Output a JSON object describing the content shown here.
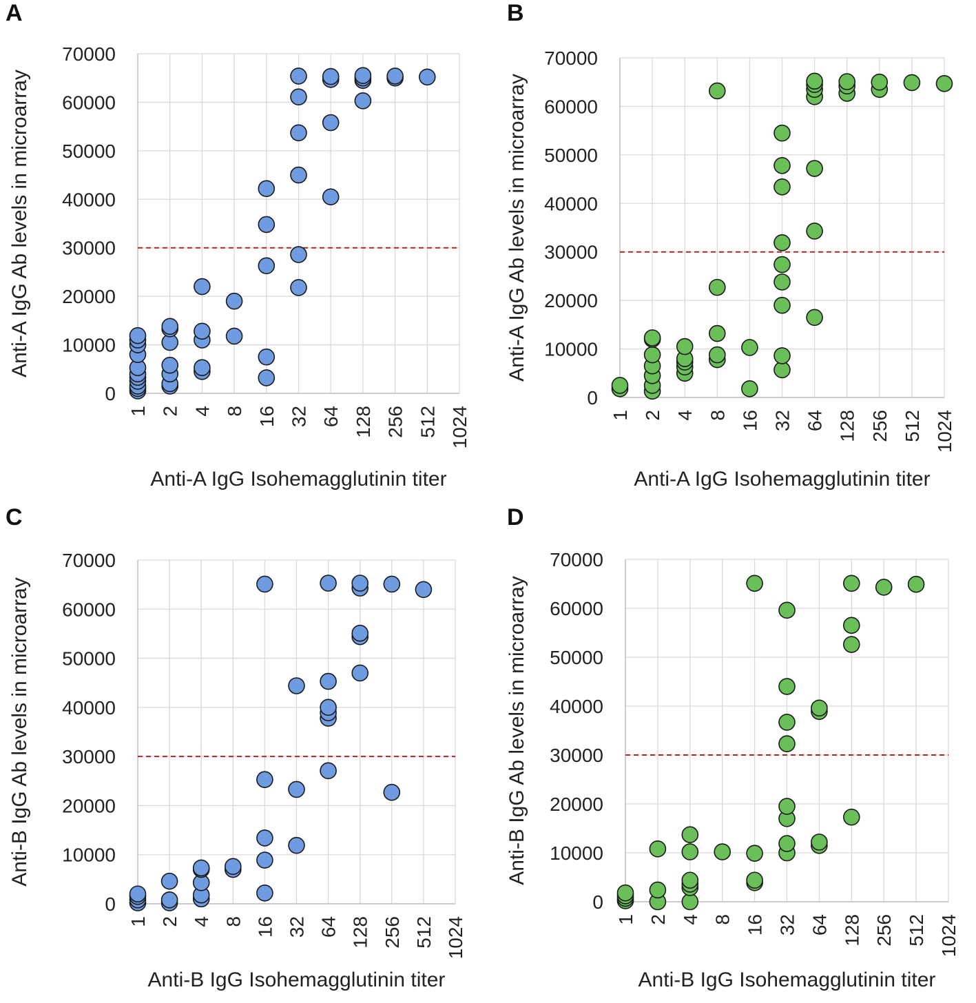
{
  "chart_data": [
    {
      "panel": "A",
      "type": "scatter",
      "xlabel": "Anti-A IgG Isohemagglutinin  titer",
      "ylabel": "Anti-A IgG Ab levels in microarray",
      "categories": [
        "1",
        "2",
        "4",
        "8",
        "16",
        "32",
        "64",
        "128",
        "256",
        "512",
        "1024"
      ],
      "yticks": [
        "0",
        "10000",
        "20000",
        "30000",
        "40000",
        "50000",
        "60000",
        "70000"
      ],
      "ylim": [
        0,
        70000
      ],
      "reference_line": 30000,
      "color": "#6f9be0",
      "points": [
        {
          "x": "1",
          "y": 500
        },
        {
          "x": "1",
          "y": 1000
        },
        {
          "x": "1",
          "y": 1500
        },
        {
          "x": "1",
          "y": 2500
        },
        {
          "x": "1",
          "y": 3300
        },
        {
          "x": "1",
          "y": 4000
        },
        {
          "x": "1",
          "y": 5300
        },
        {
          "x": "1",
          "y": 8000
        },
        {
          "x": "1",
          "y": 10000
        },
        {
          "x": "1",
          "y": 11000
        },
        {
          "x": "1",
          "y": 11900
        },
        {
          "x": "2",
          "y": 1500
        },
        {
          "x": "2",
          "y": 2000
        },
        {
          "x": "2",
          "y": 4000
        },
        {
          "x": "2",
          "y": 5800
        },
        {
          "x": "2",
          "y": 10500
        },
        {
          "x": "2",
          "y": 13300
        },
        {
          "x": "2",
          "y": 13800
        },
        {
          "x": "4",
          "y": 4500
        },
        {
          "x": "4",
          "y": 5300
        },
        {
          "x": "4",
          "y": 11000
        },
        {
          "x": "4",
          "y": 12800
        },
        {
          "x": "4",
          "y": 22000
        },
        {
          "x": "8",
          "y": 11800
        },
        {
          "x": "8",
          "y": 19000
        },
        {
          "x": "16",
          "y": 3200
        },
        {
          "x": "16",
          "y": 7500
        },
        {
          "x": "16",
          "y": 26300
        },
        {
          "x": "16",
          "y": 34800
        },
        {
          "x": "16",
          "y": 42200
        },
        {
          "x": "32",
          "y": 21800
        },
        {
          "x": "32",
          "y": 28600
        },
        {
          "x": "32",
          "y": 45000
        },
        {
          "x": "32",
          "y": 53700
        },
        {
          "x": "32",
          "y": 61100
        },
        {
          "x": "32",
          "y": 65400
        },
        {
          "x": "64",
          "y": 40500
        },
        {
          "x": "64",
          "y": 55800
        },
        {
          "x": "64",
          "y": 64700
        },
        {
          "x": "64",
          "y": 65300
        },
        {
          "x": "128",
          "y": 60300
        },
        {
          "x": "128",
          "y": 64500
        },
        {
          "x": "128",
          "y": 65000
        },
        {
          "x": "128",
          "y": 65500
        },
        {
          "x": "256",
          "y": 65000
        },
        {
          "x": "256",
          "y": 65400
        },
        {
          "x": "512",
          "y": 65200
        }
      ]
    },
    {
      "panel": "B",
      "type": "scatter",
      "xlabel": "Anti-A IgG Isohemagglutinin  titer",
      "ylabel": "Anti-A IgG  Ab levels in microarray",
      "categories": [
        "1",
        "2",
        "4",
        "8",
        "16",
        "32",
        "64",
        "128",
        "256",
        "512",
        "1024"
      ],
      "yticks": [
        "0",
        "10000",
        "20000",
        "30000",
        "40000",
        "50000",
        "60000",
        "70000"
      ],
      "ylim": [
        0,
        70000
      ],
      "reference_line": 30000,
      "color": "#6bbf59",
      "points": [
        {
          "x": "1",
          "y": 1800
        },
        {
          "x": "1",
          "y": 2500
        },
        {
          "x": "2",
          "y": 1300
        },
        {
          "x": "2",
          "y": 2500
        },
        {
          "x": "2",
          "y": 4500
        },
        {
          "x": "2",
          "y": 6500
        },
        {
          "x": "2",
          "y": 8800
        },
        {
          "x": "2",
          "y": 12000
        },
        {
          "x": "2",
          "y": 12300
        },
        {
          "x": "4",
          "y": 5000
        },
        {
          "x": "4",
          "y": 6300
        },
        {
          "x": "4",
          "y": 7300
        },
        {
          "x": "4",
          "y": 8000
        },
        {
          "x": "4",
          "y": 10500
        },
        {
          "x": "8",
          "y": 7800
        },
        {
          "x": "8",
          "y": 8800
        },
        {
          "x": "8",
          "y": 13200
        },
        {
          "x": "8",
          "y": 22700
        },
        {
          "x": "8",
          "y": 63200
        },
        {
          "x": "16",
          "y": 1800
        },
        {
          "x": "16",
          "y": 10300
        },
        {
          "x": "32",
          "y": 5700
        },
        {
          "x": "32",
          "y": 8600
        },
        {
          "x": "32",
          "y": 19000
        },
        {
          "x": "32",
          "y": 23800
        },
        {
          "x": "32",
          "y": 27400
        },
        {
          "x": "32",
          "y": 31900
        },
        {
          "x": "32",
          "y": 43400
        },
        {
          "x": "32",
          "y": 47800
        },
        {
          "x": "32",
          "y": 54500
        },
        {
          "x": "64",
          "y": 16500
        },
        {
          "x": "64",
          "y": 34300
        },
        {
          "x": "64",
          "y": 47200
        },
        {
          "x": "64",
          "y": 62000
        },
        {
          "x": "64",
          "y": 63500
        },
        {
          "x": "64",
          "y": 64500
        },
        {
          "x": "64",
          "y": 65200
        },
        {
          "x": "128",
          "y": 62700
        },
        {
          "x": "128",
          "y": 64200
        },
        {
          "x": "128",
          "y": 65100
        },
        {
          "x": "256",
          "y": 63500
        },
        {
          "x": "256",
          "y": 65000
        },
        {
          "x": "512",
          "y": 64900
        },
        {
          "x": "1024",
          "y": 64700
        }
      ]
    },
    {
      "panel": "C",
      "type": "scatter",
      "xlabel": "Anti-B IgG Isohemagglutinin  titer",
      "ylabel": "Anti-B IgG Ab levels in microarray",
      "categories": [
        "1",
        "2",
        "4",
        "8",
        "16",
        "32",
        "64",
        "128",
        "256",
        "512",
        "1024"
      ],
      "yticks": [
        "0",
        "10000",
        "20000",
        "30000",
        "40000",
        "50000",
        "60000",
        "70000"
      ],
      "ylim": [
        0,
        70000
      ],
      "reference_line": 30000,
      "color": "#6f9be0",
      "points": [
        {
          "x": "1",
          "y": 200
        },
        {
          "x": "1",
          "y": 800
        },
        {
          "x": "1",
          "y": 1500
        },
        {
          "x": "1",
          "y": 2000
        },
        {
          "x": "2",
          "y": 200
        },
        {
          "x": "2",
          "y": 800
        },
        {
          "x": "2",
          "y": 4600
        },
        {
          "x": "4",
          "y": 1000
        },
        {
          "x": "4",
          "y": 1800
        },
        {
          "x": "4",
          "y": 4300
        },
        {
          "x": "4",
          "y": 7000
        },
        {
          "x": "4",
          "y": 7300
        },
        {
          "x": "8",
          "y": 7000
        },
        {
          "x": "8",
          "y": 7600
        },
        {
          "x": "16",
          "y": 2200
        },
        {
          "x": "16",
          "y": 8900
        },
        {
          "x": "16",
          "y": 13400
        },
        {
          "x": "16",
          "y": 25300
        },
        {
          "x": "16",
          "y": 65100
        },
        {
          "x": "32",
          "y": 11900
        },
        {
          "x": "32",
          "y": 23300
        },
        {
          "x": "32",
          "y": 44400
        },
        {
          "x": "64",
          "y": 27100
        },
        {
          "x": "64",
          "y": 37800
        },
        {
          "x": "64",
          "y": 38900
        },
        {
          "x": "64",
          "y": 40000
        },
        {
          "x": "64",
          "y": 45300
        },
        {
          "x": "64",
          "y": 65300
        },
        {
          "x": "128",
          "y": 47000
        },
        {
          "x": "128",
          "y": 54400
        },
        {
          "x": "128",
          "y": 55100
        },
        {
          "x": "128",
          "y": 64300
        },
        {
          "x": "128",
          "y": 65300
        },
        {
          "x": "256",
          "y": 22700
        },
        {
          "x": "256",
          "y": 65100
        },
        {
          "x": "512",
          "y": 64000
        }
      ]
    },
    {
      "panel": "D",
      "type": "scatter",
      "xlabel": "Anti-B IgG Isohemagglutinin  titer",
      "ylabel": "Anti-B IgG Ab levels in microarray",
      "categories": [
        "1",
        "2",
        "4",
        "8",
        "16",
        "32",
        "64",
        "128",
        "256",
        "512",
        "1024"
      ],
      "yticks": [
        "0",
        "10000",
        "20000",
        "30000",
        "40000",
        "50000",
        "60000",
        "70000"
      ],
      "ylim": [
        0,
        70000
      ],
      "reference_line": 30000,
      "color": "#6bbf59",
      "points": [
        {
          "x": "1",
          "y": 200
        },
        {
          "x": "1",
          "y": 700
        },
        {
          "x": "1",
          "y": 1200
        },
        {
          "x": "1",
          "y": 1800
        },
        {
          "x": "2",
          "y": 0
        },
        {
          "x": "2",
          "y": 2400
        },
        {
          "x": "2",
          "y": 10800
        },
        {
          "x": "4",
          "y": 0
        },
        {
          "x": "4",
          "y": 2900
        },
        {
          "x": "4",
          "y": 3600
        },
        {
          "x": "4",
          "y": 4400
        },
        {
          "x": "4",
          "y": 10200
        },
        {
          "x": "4",
          "y": 13700
        },
        {
          "x": "8",
          "y": 10200
        },
        {
          "x": "16",
          "y": 3900
        },
        {
          "x": "16",
          "y": 4400
        },
        {
          "x": "16",
          "y": 9900
        },
        {
          "x": "16",
          "y": 65100
        },
        {
          "x": "32",
          "y": 10000
        },
        {
          "x": "32",
          "y": 11900
        },
        {
          "x": "32",
          "y": 17000
        },
        {
          "x": "32",
          "y": 19500
        },
        {
          "x": "32",
          "y": 32300
        },
        {
          "x": "32",
          "y": 36700
        },
        {
          "x": "32",
          "y": 44000
        },
        {
          "x": "32",
          "y": 59600
        },
        {
          "x": "64",
          "y": 11500
        },
        {
          "x": "64",
          "y": 12200
        },
        {
          "x": "64",
          "y": 38900
        },
        {
          "x": "64",
          "y": 39600
        },
        {
          "x": "128",
          "y": 17300
        },
        {
          "x": "128",
          "y": 52600
        },
        {
          "x": "128",
          "y": 56500
        },
        {
          "x": "128",
          "y": 65100
        },
        {
          "x": "256",
          "y": 64300
        },
        {
          "x": "512",
          "y": 64900
        }
      ]
    }
  ]
}
